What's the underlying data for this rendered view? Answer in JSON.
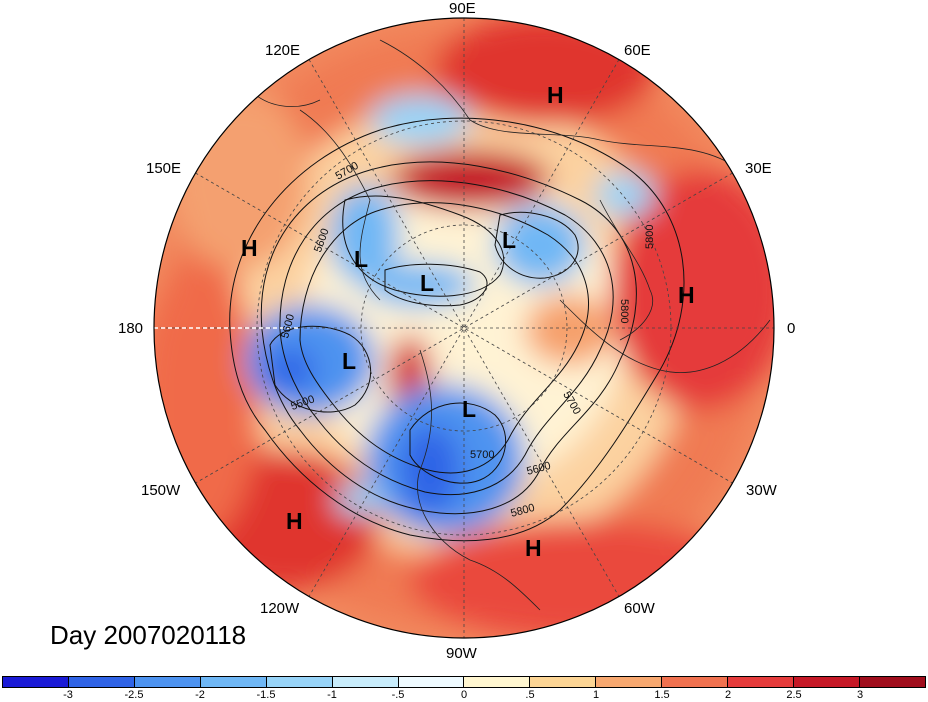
{
  "title": "Day 2007020118",
  "longitude_labels": {
    "top": "90E",
    "upper_left": "120E",
    "upper_right": "60E",
    "mid_upper_left": "150E",
    "mid_upper_right": "30E",
    "left": "180",
    "right": "0",
    "mid_lower_left": "150W",
    "mid_lower_right": "30W",
    "lower_left": "120W",
    "lower_right": "60W",
    "bottom": "90W"
  },
  "pressure_centers": [
    {
      "kind": "H",
      "region": "siberia"
    },
    {
      "kind": "H",
      "region": "east-asia-pacific"
    },
    {
      "kind": "H",
      "region": "europe"
    },
    {
      "kind": "H",
      "region": "north-pacific-east"
    },
    {
      "kind": "H",
      "region": "atlantic-subtropics"
    },
    {
      "kind": "L",
      "region": "arctic-asia"
    },
    {
      "kind": "L",
      "region": "east-siberia"
    },
    {
      "kind": "L",
      "region": "arctic-central"
    },
    {
      "kind": "L",
      "region": "north-pacific"
    },
    {
      "kind": "L",
      "region": "north-america"
    }
  ],
  "contour_labels": [
    "5700",
    "5600",
    "5600",
    "5500",
    "5800",
    "5800",
    "5700",
    "5600",
    "5800",
    "5700"
  ],
  "colorbar": {
    "tick_labels": [
      "-3",
      "-2.5",
      "-2",
      "-1.5",
      "-1",
      "-.5",
      "0",
      ".5",
      "1",
      "1.5",
      "2",
      "2.5",
      "3"
    ],
    "colors": [
      "#1a1ad6",
      "#2f63e6",
      "#4d93f0",
      "#6fb7f5",
      "#98d4f8",
      "#c8ecfb",
      "#eefaff",
      "#fff6d0",
      "#fcd595",
      "#f7a870",
      "#f0714f",
      "#e53b3b",
      "#c51826",
      "#a00d1c"
    ]
  }
}
